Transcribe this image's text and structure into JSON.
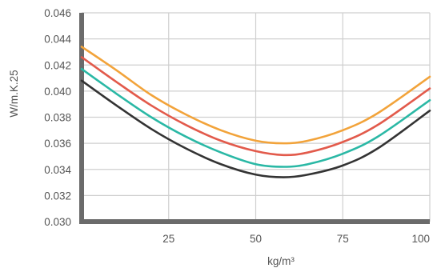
{
  "chart_data": {
    "type": "line",
    "xlabel": "kg/m³",
    "ylabel": "W/m.K.25",
    "xlim": [
      0,
      100
    ],
    "ylim": [
      0.03,
      0.046
    ],
    "x_ticks": [
      25,
      50,
      75,
      100
    ],
    "x_tick_labels": [
      "25",
      "50",
      "75",
      "100"
    ],
    "y_ticks": [
      0.03,
      0.032,
      0.034,
      0.036,
      0.038,
      0.04,
      0.042,
      0.044,
      0.046
    ],
    "y_tick_labels": [
      "0.030",
      "0.032",
      "0.034",
      "0.036",
      "0.038",
      "0.040",
      "0.042",
      "0.044",
      "0.046"
    ],
    "grid": true,
    "legend": "none",
    "x": [
      0,
      10,
      20,
      30,
      40,
      50,
      58,
      65,
      75,
      85,
      100
    ],
    "series": [
      {
        "color": "#f2a33a",
        "values": [
          0.0434,
          0.0416,
          0.0397,
          0.0382,
          0.037,
          0.0362,
          0.036,
          0.0362,
          0.037,
          0.0383,
          0.0411
        ]
      },
      {
        "color": "#e25a4b",
        "values": [
          0.0426,
          0.0407,
          0.0389,
          0.0374,
          0.0362,
          0.0354,
          0.0351,
          0.0353,
          0.0361,
          0.0374,
          0.0402
        ]
      },
      {
        "color": "#2ab8a5",
        "values": [
          0.0417,
          0.0398,
          0.038,
          0.0365,
          0.0353,
          0.0344,
          0.0342,
          0.0344,
          0.0352,
          0.0365,
          0.0393
        ]
      },
      {
        "color": "#333333",
        "values": [
          0.0408,
          0.0389,
          0.0371,
          0.0356,
          0.0344,
          0.0336,
          0.0334,
          0.0336,
          0.0343,
          0.0356,
          0.0385
        ]
      }
    ]
  }
}
